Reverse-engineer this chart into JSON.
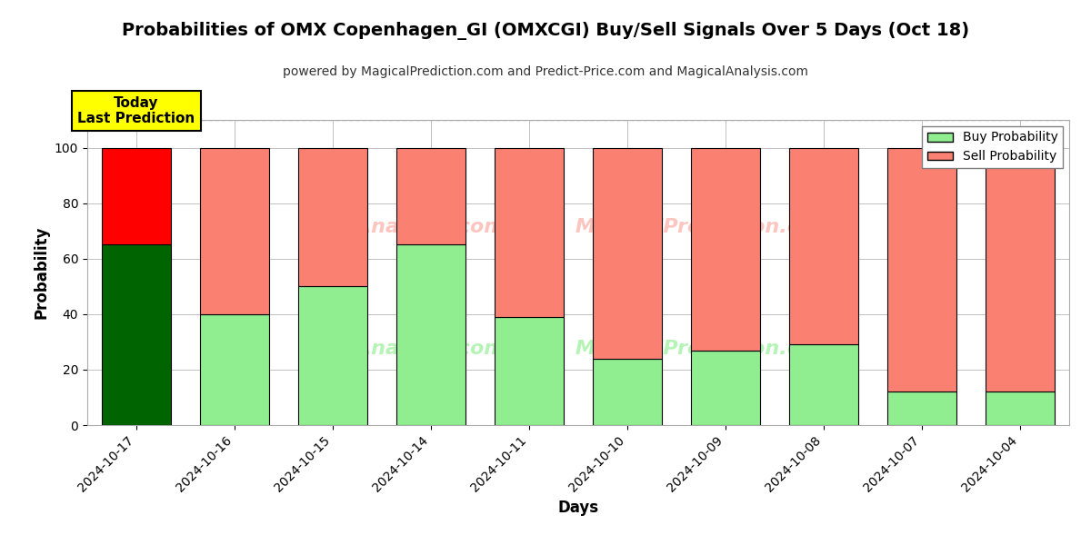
{
  "title": "Probabilities of OMX Copenhagen_GI (OMXCGI) Buy/Sell Signals Over 5 Days (Oct 18)",
  "subtitle": "powered by MagicalPrediction.com and Predict-Price.com and MagicalAnalysis.com",
  "xlabel": "Days",
  "ylabel": "Probability",
  "categories": [
    "2024-10-17",
    "2024-10-16",
    "2024-10-15",
    "2024-10-14",
    "2024-10-11",
    "2024-10-10",
    "2024-10-09",
    "2024-10-08",
    "2024-10-07",
    "2024-10-04"
  ],
  "buy_values": [
    65,
    40,
    50,
    65,
    39,
    24,
    27,
    29,
    12,
    12
  ],
  "sell_values": [
    35,
    60,
    50,
    35,
    61,
    76,
    73,
    71,
    88,
    88
  ],
  "buy_colors": [
    "#006400",
    "#90EE90",
    "#90EE90",
    "#90EE90",
    "#90EE90",
    "#90EE90",
    "#90EE90",
    "#90EE90",
    "#90EE90",
    "#90EE90"
  ],
  "sell_colors": [
    "#FF0000",
    "#FA8072",
    "#FA8072",
    "#FA8072",
    "#FA8072",
    "#FA8072",
    "#FA8072",
    "#FA8072",
    "#FA8072",
    "#FA8072"
  ],
  "today_label": "Today\nLast Prediction",
  "ylim": [
    0,
    110
  ],
  "dashed_line_y": 110,
  "legend_buy_color": "#90EE90",
  "legend_sell_color": "#FA8072",
  "bar_edge_color": "#000000",
  "bar_linewidth": 0.8,
  "background_color": "#ffffff",
  "grid_color": "#aaaaaa",
  "watermark_line1": "calAnalysis.com    MagicalPrediction.com",
  "watermark_line2": "calAnalysis.com    MagicalPrediction.com"
}
